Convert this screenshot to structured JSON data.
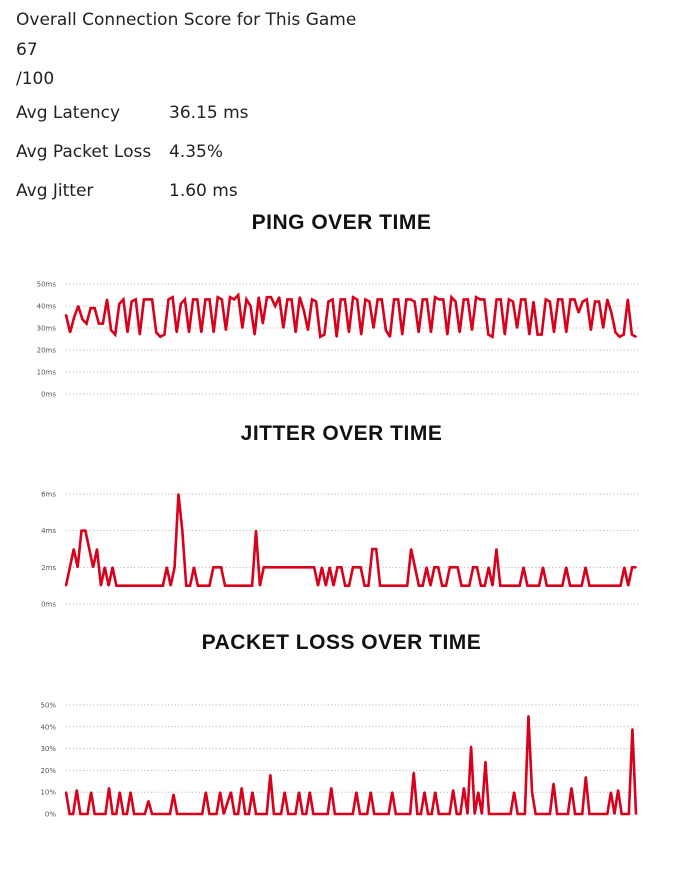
{
  "summary": {
    "title": "Overall Connection Score for This Game",
    "score": "67",
    "score_max": "/100",
    "stats": [
      {
        "label": "Avg Latency",
        "value": "36.15 ms"
      },
      {
        "label": "Avg Packet Loss",
        "value": "4.35%"
      },
      {
        "label": "Avg Jitter",
        "value": "1.60 ms"
      }
    ]
  },
  "colors": {
    "line": "#d9001b",
    "grid": "#b8b8b8"
  },
  "chart_data": [
    {
      "type": "line",
      "title": "PING OVER TIME",
      "unit": "ms",
      "yticks": [
        "0ms",
        "10ms",
        "20ms",
        "30ms",
        "40ms",
        "50ms"
      ],
      "ylim": [
        0,
        50
      ],
      "grid": "dotted horizontal",
      "series": [
        {
          "values": [
            36,
            28,
            35,
            40,
            34,
            32,
            39,
            39,
            32,
            32,
            43,
            29,
            27,
            41,
            43,
            28,
            42,
            43,
            27,
            43,
            43,
            43,
            28,
            26,
            27,
            43,
            44,
            28,
            41,
            43,
            28,
            43,
            43,
            28,
            43,
            43,
            28,
            44,
            43,
            29,
            44,
            43,
            45,
            30,
            43,
            40,
            27,
            44,
            32,
            44,
            44,
            40,
            44,
            30,
            43,
            43,
            28,
            44,
            38,
            29,
            43,
            42,
            26,
            27,
            42,
            43,
            26,
            43,
            43,
            28,
            44,
            43,
            27,
            43,
            42,
            30,
            43,
            43,
            29,
            26,
            43,
            43,
            27,
            43,
            43,
            42,
            28,
            43,
            43,
            28,
            44,
            43,
            43,
            27,
            44,
            42,
            28,
            43,
            43,
            29,
            44,
            43,
            43,
            27,
            26,
            43,
            43,
            27,
            43,
            42,
            30,
            43,
            43,
            27,
            42,
            27,
            27,
            43,
            42,
            28,
            43,
            43,
            28,
            43,
            43,
            37,
            42,
            43,
            29,
            42,
            42,
            30,
            43,
            37,
            28,
            26,
            27,
            43,
            27,
            26
          ]
        }
      ]
    },
    {
      "type": "line",
      "title": "JITTER OVER TIME",
      "unit": "ms",
      "yticks": [
        "0ms",
        "2ms",
        "4ms",
        "6ms"
      ],
      "ylim": [
        0,
        6
      ],
      "grid": "dotted horizontal",
      "series": [
        {
          "values": [
            1,
            2,
            3,
            2,
            4,
            4,
            3,
            2,
            3,
            1,
            2,
            1,
            2,
            1,
            1,
            1,
            1,
            1,
            1,
            1,
            1,
            1,
            1,
            1,
            1,
            1,
            2,
            1,
            2,
            6,
            4,
            1,
            1,
            2,
            1,
            1,
            1,
            1,
            2,
            2,
            2,
            1,
            1,
            1,
            1,
            1,
            1,
            1,
            1,
            4,
            1,
            2,
            2,
            2,
            2,
            2,
            2,
            2,
            2,
            2,
            2,
            2,
            2,
            2,
            2,
            1,
            2,
            1,
            2,
            1,
            2,
            2,
            1,
            1,
            2,
            2,
            2,
            1,
            1,
            3,
            3,
            1,
            1,
            1,
            1,
            1,
            1,
            1,
            1,
            3,
            2,
            1,
            1,
            2,
            1,
            2,
            2,
            1,
            1,
            2,
            2,
            2,
            1,
            1,
            1,
            2,
            2,
            1,
            1,
            2,
            1,
            3,
            1,
            1,
            1,
            1,
            1,
            1,
            2,
            1,
            1,
            1,
            1,
            2,
            1,
            1,
            1,
            1,
            1,
            2,
            1,
            1,
            1,
            1,
            2,
            1,
            1,
            1,
            1,
            1,
            1,
            1,
            1,
            1,
            2,
            1,
            2,
            2
          ]
        }
      ]
    },
    {
      "type": "line",
      "title": "PACKET LOSS OVER TIME",
      "unit": "%",
      "yticks": [
        "0%",
        "10%",
        "20%",
        "30%",
        "40%",
        "50%"
      ],
      "ylim": [
        0,
        50
      ],
      "grid": "dotted horizontal",
      "series": [
        {
          "values": [
            10,
            0,
            0,
            11,
            0,
            0,
            0,
            10,
            0,
            0,
            0,
            0,
            12,
            0,
            0,
            10,
            0,
            0,
            10,
            0,
            0,
            0,
            0,
            6,
            0,
            0,
            0,
            0,
            0,
            0,
            9,
            0,
            0,
            0,
            0,
            0,
            0,
            0,
            0,
            10,
            0,
            0,
            0,
            10,
            0,
            5,
            10,
            0,
            0,
            12,
            0,
            0,
            10,
            0,
            0,
            0,
            0,
            18,
            0,
            0,
            0,
            10,
            0,
            0,
            0,
            10,
            0,
            0,
            10,
            0,
            0,
            0,
            0,
            0,
            12,
            0,
            0,
            0,
            0,
            0,
            0,
            10,
            0,
            0,
            0,
            10,
            0,
            0,
            0,
            0,
            0,
            10,
            0,
            0,
            0,
            0,
            0,
            19,
            0,
            0,
            10,
            0,
            0,
            10,
            0,
            0,
            0,
            0,
            11,
            0,
            0,
            12,
            0,
            31,
            0,
            10,
            0,
            24,
            0,
            0,
            0,
            0,
            0,
            0,
            0,
            10,
            0,
            0,
            0,
            45,
            10,
            0,
            0,
            0,
            0,
            0,
            14,
            0,
            0,
            0,
            0,
            12,
            0,
            0,
            0,
            17,
            0,
            0,
            0,
            0,
            0,
            0,
            10,
            0,
            11,
            0,
            0,
            0,
            39,
            0
          ]
        }
      ]
    }
  ]
}
